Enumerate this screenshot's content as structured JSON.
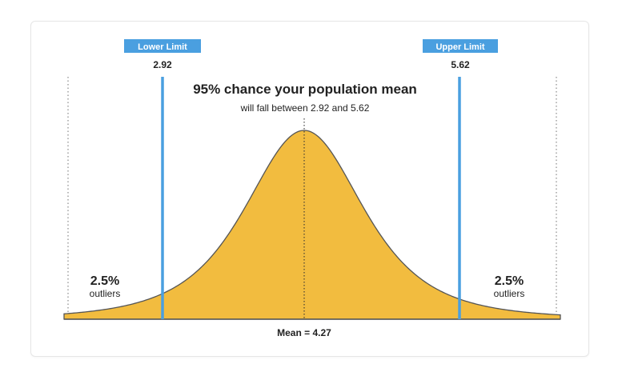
{
  "colors": {
    "curve_fill": "#F2BC3F",
    "curve_stroke": "#555555",
    "limit_line": "#4A9FE0",
    "limit_badge": "#4A9FE0",
    "axis": "#555555",
    "text": "#222222"
  },
  "title": "95% chance your population mean",
  "subtitle": "will fall between 2.92 and 5.62",
  "lower": {
    "badge": "Lower Limit",
    "value": "2.92"
  },
  "upper": {
    "badge": "Upper Limit",
    "value": "5.62"
  },
  "left_outliers": {
    "pct": "2.5%",
    "label": "outliers"
  },
  "right_outliers": {
    "pct": "2.5%",
    "label": "outliers"
  },
  "mean_label": "Mean = 4.27"
}
